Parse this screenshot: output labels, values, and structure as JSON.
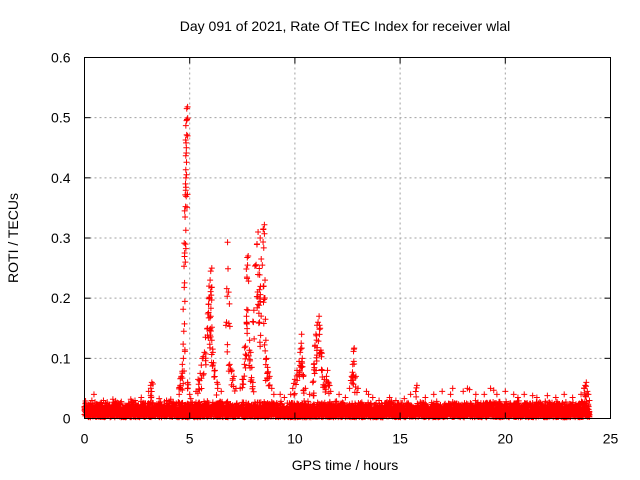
{
  "chart_data": {
    "type": "scatter",
    "title": "Day 091 of 2021, Rate Of TEC Index for receiver wlal",
    "xlabel": "GPS time / hours",
    "ylabel": "ROTI / TECUs",
    "xlim": [
      0,
      25
    ],
    "ylim": [
      0,
      0.6
    ],
    "x_ticks": [
      0,
      5,
      10,
      15,
      20,
      25
    ],
    "x_tick_labels": [
      "0",
      "5",
      "10",
      "15",
      "20",
      "25"
    ],
    "y_ticks": [
      0,
      0.1,
      0.2,
      0.3,
      0.4,
      0.5,
      0.6
    ],
    "y_tick_labels": [
      "0",
      "0.1",
      "0.2",
      "0.3",
      "0.4",
      "0.5",
      "0.6"
    ],
    "grid": true,
    "marker": "+",
    "color": "#ff0000",
    "baseline_band": {
      "x_range": [
        0,
        24
      ],
      "y_range": [
        0.002,
        0.03
      ]
    },
    "points": [
      [
        0.05,
        0.029
      ],
      [
        0.35,
        0.03
      ],
      [
        0.45,
        0.04
      ],
      [
        0.9,
        0.03
      ],
      [
        1.35,
        0.032
      ],
      [
        1.75,
        0.028
      ],
      [
        2.2,
        0.032
      ],
      [
        2.4,
        0.03
      ],
      [
        2.7,
        0.035
      ],
      [
        3.05,
        0.045
      ],
      [
        3.15,
        0.055
      ],
      [
        3.2,
        0.06
      ],
      [
        3.55,
        0.033
      ],
      [
        3.9,
        0.03
      ],
      [
        4.1,
        0.032
      ],
      [
        4.5,
        0.04
      ],
      [
        4.55,
        0.055
      ],
      [
        4.6,
        0.07
      ],
      [
        4.65,
        0.09
      ],
      [
        4.7,
        0.1
      ],
      [
        4.72,
        0.145
      ],
      [
        4.74,
        0.218
      ],
      [
        4.76,
        0.275
      ],
      [
        4.78,
        0.335
      ],
      [
        4.8,
        0.39
      ],
      [
        4.82,
        0.4
      ],
      [
        4.84,
        0.45
      ],
      [
        4.85,
        0.495
      ],
      [
        4.87,
        0.497
      ],
      [
        4.86,
        0.515
      ],
      [
        4.9,
        0.518
      ],
      [
        4.9,
        0.06
      ],
      [
        5.0,
        0.04
      ],
      [
        5.05,
        0.033
      ],
      [
        5.3,
        0.045
      ],
      [
        5.4,
        0.065
      ],
      [
        5.5,
        0.075
      ],
      [
        5.6,
        0.1
      ],
      [
        5.7,
        0.11
      ],
      [
        5.75,
        0.135
      ],
      [
        5.85,
        0.15
      ],
      [
        5.9,
        0.19
      ],
      [
        5.95,
        0.2
      ],
      [
        5.97,
        0.23
      ],
      [
        6.0,
        0.245
      ],
      [
        6.05,
        0.25
      ],
      [
        5.92,
        0.22
      ],
      [
        6.0,
        0.17
      ],
      [
        6.05,
        0.13
      ],
      [
        6.1,
        0.11
      ],
      [
        6.2,
        0.08
      ],
      [
        6.3,
        0.06
      ],
      [
        6.5,
        0.045
      ],
      [
        6.75,
        0.16
      ],
      [
        6.85,
        0.21
      ],
      [
        6.8,
        0.293
      ],
      [
        6.9,
        0.09
      ],
      [
        7.0,
        0.08
      ],
      [
        7.1,
        0.07
      ],
      [
        7.2,
        0.05
      ],
      [
        7.4,
        0.05
      ],
      [
        7.5,
        0.065
      ],
      [
        7.6,
        0.09
      ],
      [
        7.65,
        0.12
      ],
      [
        7.7,
        0.17
      ],
      [
        7.72,
        0.235
      ],
      [
        7.75,
        0.255
      ],
      [
        7.78,
        0.27
      ],
      [
        7.85,
        0.13
      ],
      [
        7.9,
        0.11
      ],
      [
        7.95,
        0.085
      ],
      [
        8.0,
        0.06
      ],
      [
        8.05,
        0.18
      ],
      [
        8.15,
        0.255
      ],
      [
        8.2,
        0.29
      ],
      [
        8.25,
        0.31
      ],
      [
        8.3,
        0.2
      ],
      [
        8.32,
        0.16
      ],
      [
        8.35,
        0.3
      ],
      [
        8.4,
        0.265
      ],
      [
        8.45,
        0.255
      ],
      [
        8.5,
        0.315
      ],
      [
        8.55,
        0.322
      ],
      [
        8.58,
        0.23
      ],
      [
        8.6,
        0.165
      ],
      [
        8.62,
        0.13
      ],
      [
        8.65,
        0.1
      ],
      [
        8.7,
        0.085
      ],
      [
        8.8,
        0.07
      ],
      [
        8.9,
        0.05
      ],
      [
        9.0,
        0.04
      ],
      [
        9.3,
        0.04
      ],
      [
        9.5,
        0.035
      ],
      [
        9.8,
        0.04
      ],
      [
        9.9,
        0.05
      ],
      [
        10.0,
        0.065
      ],
      [
        10.1,
        0.08
      ],
      [
        10.2,
        0.095
      ],
      [
        10.25,
        0.11
      ],
      [
        10.3,
        0.125
      ],
      [
        10.32,
        0.14
      ],
      [
        10.35,
        0.1
      ],
      [
        10.4,
        0.07
      ],
      [
        10.5,
        0.05
      ],
      [
        10.7,
        0.04
      ],
      [
        10.85,
        0.06
      ],
      [
        10.9,
        0.09
      ],
      [
        10.95,
        0.12
      ],
      [
        11.0,
        0.14
      ],
      [
        11.05,
        0.155
      ],
      [
        11.1,
        0.16
      ],
      [
        11.15,
        0.17
      ],
      [
        11.2,
        0.15
      ],
      [
        11.25,
        0.11
      ],
      [
        11.3,
        0.08
      ],
      [
        11.4,
        0.065
      ],
      [
        11.5,
        0.07
      ],
      [
        11.55,
        0.08
      ],
      [
        11.6,
        0.06
      ],
      [
        11.7,
        0.045
      ],
      [
        12.1,
        0.04
      ],
      [
        12.4,
        0.035
      ],
      [
        12.6,
        0.05
      ],
      [
        12.7,
        0.07
      ],
      [
        12.75,
        0.09
      ],
      [
        12.8,
        0.095
      ],
      [
        12.82,
        0.117
      ],
      [
        12.9,
        0.07
      ],
      [
        13.0,
        0.05
      ],
      [
        13.4,
        0.045
      ],
      [
        13.5,
        0.04
      ],
      [
        13.7,
        0.035
      ],
      [
        14.0,
        0.03
      ],
      [
        14.5,
        0.035
      ],
      [
        14.8,
        0.03
      ],
      [
        15.2,
        0.033
      ],
      [
        15.5,
        0.04
      ],
      [
        15.8,
        0.055
      ],
      [
        16.2,
        0.035
      ],
      [
        16.6,
        0.04
      ],
      [
        17.0,
        0.045
      ],
      [
        17.4,
        0.04
      ],
      [
        17.5,
        0.05
      ],
      [
        18.0,
        0.045
      ],
      [
        18.2,
        0.05
      ],
      [
        18.3,
        0.048
      ],
      [
        18.6,
        0.04
      ],
      [
        19.0,
        0.04
      ],
      [
        19.3,
        0.05
      ],
      [
        19.45,
        0.047
      ],
      [
        19.6,
        0.04
      ],
      [
        20.0,
        0.045
      ],
      [
        20.4,
        0.04
      ],
      [
        20.6,
        0.035
      ],
      [
        20.9,
        0.04
      ],
      [
        21.3,
        0.038
      ],
      [
        21.5,
        0.035
      ],
      [
        22.0,
        0.038
      ],
      [
        22.4,
        0.035
      ],
      [
        22.8,
        0.04
      ],
      [
        23.2,
        0.035
      ],
      [
        23.6,
        0.04
      ],
      [
        23.75,
        0.05
      ],
      [
        23.8,
        0.055
      ],
      [
        23.85,
        0.06
      ],
      [
        23.9,
        0.045
      ],
      [
        23.95,
        0.04
      ],
      [
        24.0,
        0.03
      ]
    ]
  }
}
